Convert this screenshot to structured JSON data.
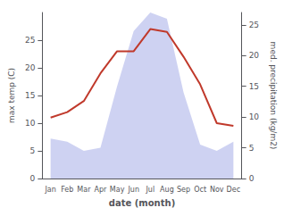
{
  "chart_data": {
    "type": "line",
    "categories": [
      "Jan",
      "Feb",
      "Mar",
      "Apr",
      "May",
      "Jun",
      "Jul",
      "Aug",
      "Sep",
      "Oct",
      "Nov",
      "Dec"
    ],
    "xlabel": "date (month)",
    "ylabel": "max temp (C)",
    "y2label": "med. precipitation (kg/m2)",
    "series": [
      {
        "type": "line",
        "color": "#c0392b",
        "values": [
          11,
          12,
          14,
          19,
          23,
          23,
          27,
          26.5,
          22,
          17,
          10,
          9.5
        ]
      },
      {
        "type": "area",
        "color": "#c5caf0",
        "axis": "y2",
        "values": [
          6.5,
          6.0,
          4.5,
          5.0,
          15,
          24,
          27,
          26,
          14,
          5.5,
          4.5,
          6.0
        ]
      }
    ],
    "ylim": [
      0,
      30
    ],
    "yticks": [
      0,
      5,
      10,
      15,
      20,
      25
    ],
    "y2lim": [
      0,
      27
    ],
    "y2ticks": [
      0,
      5,
      10,
      15,
      20,
      25
    ],
    "grid": false
  }
}
